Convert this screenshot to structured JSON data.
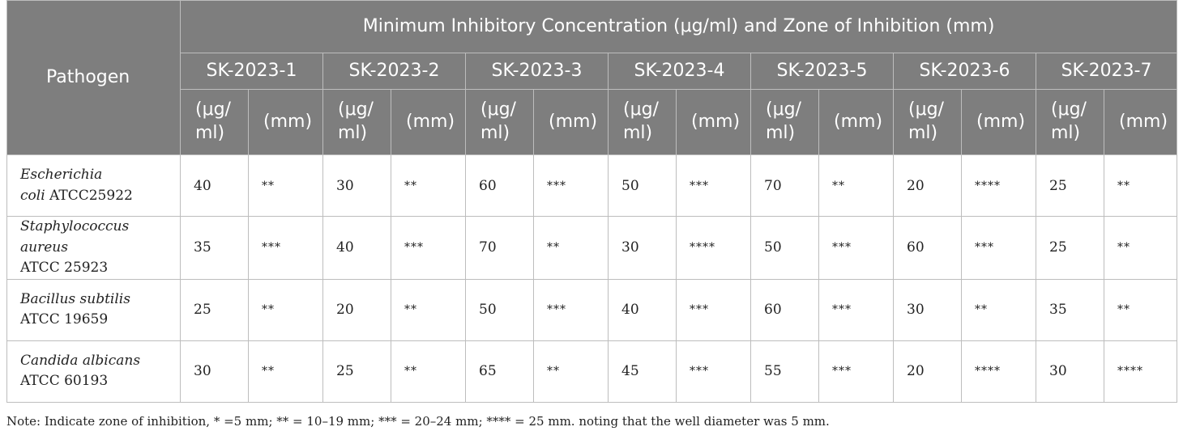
{
  "table": {
    "pathogen_header": "Pathogen",
    "title": "Minimum Inhibitory Concentration (μg/ml) and Zone of Inhibition (mm)",
    "compounds": [
      "SK-2023-1",
      "SK-2023-2",
      "SK-2023-3",
      "SK-2023-4",
      "SK-2023-5",
      "SK-2023-6",
      "SK-2023-7"
    ],
    "unit_mic_line1": "(μg/",
    "unit_mic_line2": "ml)",
    "unit_zone": "(mm)",
    "rows": [
      {
        "name_italic": "Escherichia",
        "name_line2_italic": "coli",
        "name_line2_rest": " ATCC25922",
        "values": [
          "40",
          "**",
          "30",
          "**",
          "60",
          "***",
          "50",
          "***",
          "70",
          "**",
          "20",
          "****",
          "25",
          "**"
        ]
      },
      {
        "name_italic": "Staphylococcus aureus",
        "name_line2_italic": "",
        "name_line2_rest": "ATCC 25923",
        "values": [
          "35",
          "***",
          "40",
          "***",
          "70",
          "**",
          "30",
          "****",
          "50",
          "***",
          "60",
          "***",
          "25",
          "**"
        ]
      },
      {
        "name_italic": "Bacillus subtilis",
        "name_line2_italic": "",
        "name_line2_rest": "ATCC 19659",
        "values": [
          "25",
          "**",
          "20",
          "**",
          "50",
          "***",
          "40",
          "***",
          "60",
          "***",
          "30",
          "**",
          "35",
          "**"
        ]
      },
      {
        "name_italic": "Candida albicans",
        "name_line2_italic": "",
        "name_line2_rest": "ATCC 60193",
        "values": [
          "30",
          "**",
          "25",
          "**",
          "65",
          "**",
          "45",
          "***",
          "55",
          "***",
          "20",
          "****",
          "30",
          "****"
        ]
      }
    ]
  },
  "note": "Note: Indicate zone of inhibition, * =5 mm; ** = 10–19 mm; *** = 20–24 mm; **** = 25 mm. noting that the well diameter was 5 mm."
}
